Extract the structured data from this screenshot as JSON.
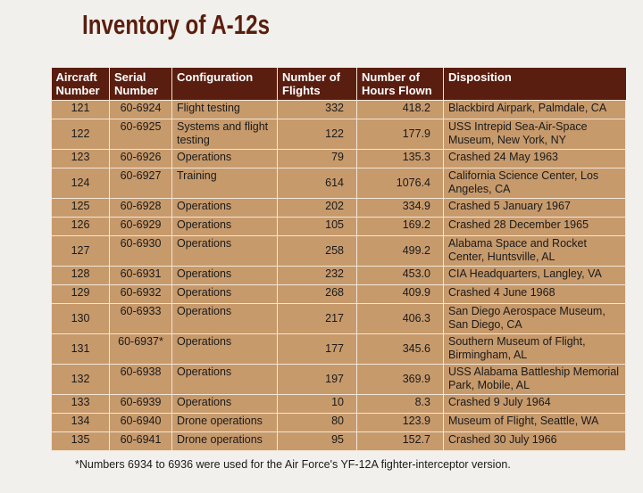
{
  "title": "Inventory of A-12s",
  "headers": [
    "Aircraft Number",
    "Serial Number",
    "Configuration",
    "Number of Flights",
    "Number of Hours Flown",
    "Disposition"
  ],
  "rows": [
    [
      "121",
      "60-6924",
      "Flight testing",
      "332",
      "418.2",
      "Blackbird Airpark, Palmdale, CA"
    ],
    [
      "122",
      "60-6925",
      "Systems and flight testing",
      "122",
      "177.9",
      "USS Intrepid Sea-Air-Space Museum, New York, NY"
    ],
    [
      "123",
      "60-6926",
      "Operations",
      "79",
      "135.3",
      "Crashed 24 May 1963"
    ],
    [
      "124",
      "60-6927",
      "Training",
      "614",
      "1076.4",
      "California Science Center, Los Angeles, CA"
    ],
    [
      "125",
      "60-6928",
      "Operations",
      "202",
      "334.9",
      "Crashed 5 January 1967"
    ],
    [
      "126",
      "60-6929",
      "Operations",
      "105",
      "169.2",
      "Crashed 28 December 1965"
    ],
    [
      "127",
      "60-6930",
      "Operations",
      "258",
      "499.2",
      "Alabama Space and Rocket Center, Huntsville, AL"
    ],
    [
      "128",
      "60-6931",
      "Operations",
      "232",
      "453.0",
      "CIA Headquarters, Langley, VA"
    ],
    [
      "129",
      "60-6932",
      "Operations",
      "268",
      "409.9",
      "Crashed 4 June 1968"
    ],
    [
      "130",
      "60-6933",
      "Operations",
      "217",
      "406.3",
      "San Diego Aerospace Museum, San Diego, CA"
    ],
    [
      "131",
      "60-6937*",
      "Operations",
      "177",
      "345.6",
      "Southern Museum of Flight, Birmingham, AL"
    ],
    [
      "132",
      "60-6938",
      "Operations",
      "197",
      "369.9",
      "USS Alabama Battleship Memorial Park, Mobile, AL"
    ],
    [
      "133",
      "60-6939",
      "Operations",
      "10",
      "8.3",
      "Crashed 9 July 1964"
    ],
    [
      "134",
      "60-6940",
      "Drone operations",
      "80",
      "123.9",
      "Museum of Flight, Seattle, WA"
    ],
    [
      "135",
      "60-6941",
      "Drone operations",
      "95",
      "152.7",
      "Crashed 30 July 1966"
    ]
  ],
  "footnote": "*Numbers 6934 to 6936 were used for the Air Force's YF-12A fighter-interceptor version.",
  "colors": {
    "title": "#5a1e0e",
    "header_bg": "#5a1e10",
    "cell_bg": "#c79a6c",
    "page_bg": "#f2f0ec"
  }
}
